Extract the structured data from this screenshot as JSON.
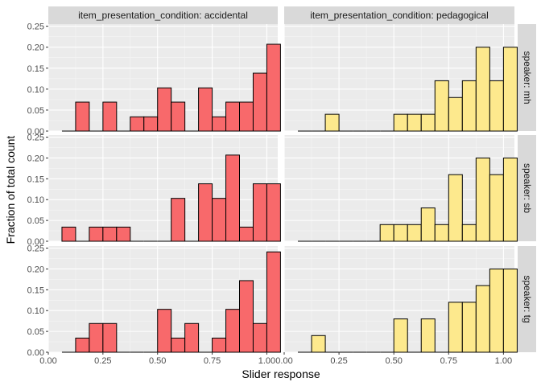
{
  "chart_data": {
    "type": "histogram-facet",
    "xlabel": "Slider response",
    "ylabel": "Fraction of total count",
    "xlim": [
      0,
      1.05
    ],
    "ylim": [
      0,
      0.255
    ],
    "x_ticks": [
      0.0,
      0.25,
      0.5,
      0.75,
      1.0
    ],
    "x_tick_labels": [
      "0.00",
      "0.25",
      "0.50",
      "0.75",
      "1.00"
    ],
    "y_ticks": [
      0.0,
      0.05,
      0.1,
      0.15,
      0.2,
      0.25
    ],
    "y_tick_labels": [
      "0.00",
      "0.05",
      "0.10",
      "0.15",
      "0.20",
      "0.25"
    ],
    "grid": true,
    "bin_start": 0.0,
    "bin_width": 0.0625,
    "column_labels": [
      "item_presentation_condition: accidental",
      "item_presentation_condition: pedagogical"
    ],
    "row_labels": [
      "speaker: mh",
      "speaker: sb",
      "speaker: tg"
    ],
    "colors": {
      "accidental": "#F8696B",
      "pedagogical": "#FDE98D"
    },
    "panels": [
      {
        "row": 0,
        "col": 0,
        "values": [
          0,
          0,
          0.069,
          0,
          0.069,
          0,
          0.034,
          0.034,
          0.103,
          0.069,
          0,
          0.103,
          0.034,
          0.069,
          0.069,
          0.138,
          0.207
        ]
      },
      {
        "row": 0,
        "col": 1,
        "values": [
          0,
          0,
          0,
          0.04,
          0,
          0,
          0,
          0,
          0.04,
          0.04,
          0.04,
          0.12,
          0.08,
          0.12,
          0.2,
          0.12,
          0.2
        ]
      },
      {
        "row": 1,
        "col": 0,
        "values": [
          0,
          0.034,
          0,
          0.034,
          0.034,
          0.034,
          0,
          0,
          0,
          0.103,
          0,
          0.138,
          0.103,
          0.207,
          0.034,
          0.138,
          0.138
        ]
      },
      {
        "row": 1,
        "col": 1,
        "values": [
          0,
          0,
          0,
          0,
          0,
          0,
          0,
          0.04,
          0.04,
          0.04,
          0.08,
          0.04,
          0.16,
          0.04,
          0.2,
          0.16,
          0.2
        ]
      },
      {
        "row": 2,
        "col": 0,
        "values": [
          0,
          0,
          0.034,
          0.069,
          0.069,
          0,
          0,
          0,
          0.103,
          0.034,
          0.069,
          0,
          0.034,
          0.103,
          0.172,
          0.069,
          0.241
        ]
      },
      {
        "row": 2,
        "col": 1,
        "values": [
          0,
          0,
          0.04,
          0,
          0,
          0,
          0,
          0,
          0.08,
          0,
          0.08,
          0,
          0.12,
          0.12,
          0.16,
          0.2,
          0.2
        ]
      }
    ]
  }
}
